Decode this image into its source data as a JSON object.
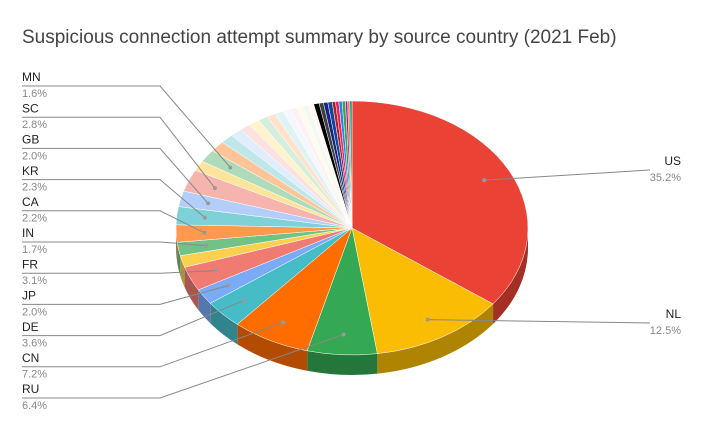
{
  "chart_data": {
    "type": "pie3d",
    "title": "Suspicious connection attempt summary by source country (2021 Feb)",
    "categories": [
      "US",
      "NL",
      "RU",
      "CN",
      "DE",
      "JP",
      "FR",
      null,
      "IN",
      "CA",
      "KR",
      "GB",
      "SC",
      null,
      "MN",
      null,
      null,
      null,
      null,
      null,
      null,
      null,
      null,
      null,
      null,
      null,
      null,
      null,
      null,
      null,
      null,
      null,
      null,
      null,
      null,
      null,
      null,
      null,
      null
    ],
    "values": [
      35.2,
      12.5,
      6.4,
      7.2,
      3.6,
      2.0,
      3.1,
      1.5,
      1.7,
      2.2,
      2.3,
      2.0,
      2.8,
      1.3,
      1.6,
      1.4,
      1.2,
      1.1,
      1.0,
      1.0,
      0.9,
      0.8,
      0.8,
      0.7,
      0.6,
      0.6,
      0.5,
      0.5,
      0.5,
      0.4,
      0.4,
      0.4,
      0.3,
      0.3,
      0.3,
      0.3,
      0.2,
      0.2,
      0.2
    ],
    "value_labels": [
      "35.2%",
      "12.5%",
      "6.4%",
      "7.2%",
      "3.6%",
      "2.0%",
      "3.1%",
      null,
      "1.7%",
      "2.2%",
      "2.3%",
      "2.0%",
      "2.8%",
      null,
      "1.6%",
      null,
      null,
      null,
      null,
      null,
      null,
      null,
      null,
      null,
      null,
      null,
      null,
      null,
      null,
      null,
      null,
      null,
      null,
      null,
      null,
      null,
      null,
      null,
      null
    ],
    "colors": [
      "#ea4335",
      "#fbbc04",
      "#34a853",
      "#ff6d01",
      "#46bdc6",
      "#7baaf7",
      "#f07b72",
      "#fcd04f",
      "#71c287",
      "#ff994d",
      "#7ed1d7",
      "#b3cefb",
      "#f7b4ae",
      "#fde49b",
      "#aedcba",
      "#ffc599",
      "#bee7ea",
      "#e1ecfd",
      "#fbe1df",
      "#fef3cd",
      "#d6eedc",
      "#ffe2cc",
      "#dff3f4",
      "#f4f8fe",
      "#fdf2f1",
      "#fffaed",
      "#f0f9f2",
      "#fff7f0",
      "#000000",
      "#3c4043",
      "#1a237e",
      "#0d47a1",
      "#b71c1c",
      "#e91e63",
      "#1e88e5",
      "#43a047",
      "#8e24aa",
      "#ff7043",
      "#009688"
    ]
  }
}
